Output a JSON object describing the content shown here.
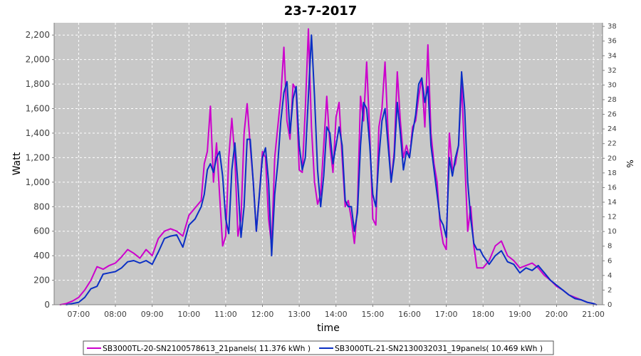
{
  "chart_data": {
    "type": "line",
    "title": "23-7-2017",
    "xlabel": "time",
    "ylabel": "Watt",
    "y2label": "%",
    "xlim": [
      "06:20",
      "21:15"
    ],
    "ylim": [
      0,
      2300
    ],
    "y2lim": [
      0,
      38.5
    ],
    "x_ticks": [
      "07:00",
      "08:00",
      "09:00",
      "10:00",
      "11:00",
      "12:00",
      "13:00",
      "14:00",
      "15:00",
      "16:00",
      "17:00",
      "18:00",
      "19:00",
      "20:00",
      "21:00"
    ],
    "y_ticks": [
      "0",
      "200",
      "400",
      "600",
      "800",
      "1,000",
      "1,200",
      "1,400",
      "1,600",
      "1,800",
      "2,000",
      "2,200"
    ],
    "y2_ticks": [
      "0",
      "2",
      "4",
      "6",
      "8",
      "10",
      "12",
      "14",
      "16",
      "18",
      "20",
      "22",
      "24",
      "26",
      "28",
      "30",
      "32",
      "34",
      "36",
      "38"
    ],
    "grid": true,
    "legend_position": "bottom",
    "colors": {
      "plot_bg": "#c8c8c8",
      "grid": "#ffffff"
    },
    "series": [
      {
        "name": "SB3000TL-20-SN2100578613_21panels( 11.376 kWh )",
        "color": "#cc00cc",
        "points": [
          [
            "06:30",
            0
          ],
          [
            "06:40",
            10
          ],
          [
            "06:50",
            30
          ],
          [
            "07:00",
            60
          ],
          [
            "07:10",
            120
          ],
          [
            "07:20",
            200
          ],
          [
            "07:30",
            310
          ],
          [
            "07:40",
            290
          ],
          [
            "07:50",
            320
          ],
          [
            "08:00",
            340
          ],
          [
            "08:10",
            390
          ],
          [
            "08:20",
            450
          ],
          [
            "08:30",
            420
          ],
          [
            "08:40",
            380
          ],
          [
            "08:50",
            450
          ],
          [
            "09:00",
            400
          ],
          [
            "09:10",
            540
          ],
          [
            "09:20",
            600
          ],
          [
            "09:30",
            620
          ],
          [
            "09:40",
            600
          ],
          [
            "09:50",
            560
          ],
          [
            "10:00",
            730
          ],
          [
            "10:10",
            790
          ],
          [
            "10:20",
            850
          ],
          [
            "10:25",
            1150
          ],
          [
            "10:30",
            1250
          ],
          [
            "10:35",
            1620
          ],
          [
            "10:40",
            1000
          ],
          [
            "10:45",
            1320
          ],
          [
            "10:50",
            900
          ],
          [
            "10:55",
            480
          ],
          [
            "11:00",
            560
          ],
          [
            "11:05",
            1200
          ],
          [
            "11:10",
            1520
          ],
          [
            "11:15",
            1200
          ],
          [
            "11:20",
            560
          ],
          [
            "11:25",
            700
          ],
          [
            "11:30",
            1400
          ],
          [
            "11:35",
            1640
          ],
          [
            "11:40",
            1300
          ],
          [
            "11:45",
            1000
          ],
          [
            "11:50",
            600
          ],
          [
            "11:55",
            900
          ],
          [
            "12:00",
            1250
          ],
          [
            "12:05",
            1200
          ],
          [
            "12:10",
            700
          ],
          [
            "12:15",
            480
          ],
          [
            "12:20",
            1200
          ],
          [
            "12:25",
            1450
          ],
          [
            "12:30",
            1700
          ],
          [
            "12:35",
            2100
          ],
          [
            "12:40",
            1500
          ],
          [
            "12:45",
            1350
          ],
          [
            "12:50",
            1800
          ],
          [
            "12:55",
            1750
          ],
          [
            "13:00",
            1100
          ],
          [
            "13:05",
            1080
          ],
          [
            "13:10",
            1600
          ],
          [
            "13:15",
            2250
          ],
          [
            "13:20",
            1450
          ],
          [
            "13:25",
            1000
          ],
          [
            "13:30",
            820
          ],
          [
            "13:35",
            900
          ],
          [
            "13:40",
            1300
          ],
          [
            "13:45",
            1700
          ],
          [
            "13:50",
            1300
          ],
          [
            "13:55",
            1080
          ],
          [
            "14:00",
            1530
          ],
          [
            "14:05",
            1650
          ],
          [
            "14:10",
            1200
          ],
          [
            "14:15",
            800
          ],
          [
            "14:20",
            850
          ],
          [
            "14:25",
            700
          ],
          [
            "14:30",
            500
          ],
          [
            "14:35",
            800
          ],
          [
            "14:40",
            1700
          ],
          [
            "14:45",
            1500
          ],
          [
            "14:50",
            1980
          ],
          [
            "14:55",
            1400
          ],
          [
            "15:00",
            700
          ],
          [
            "15:05",
            650
          ],
          [
            "15:10",
            1450
          ],
          [
            "15:15",
            1600
          ],
          [
            "15:20",
            1980
          ],
          [
            "15:25",
            1400
          ],
          [
            "15:30",
            1000
          ],
          [
            "15:35",
            1250
          ],
          [
            "15:40",
            1900
          ],
          [
            "15:45",
            1500
          ],
          [
            "15:50",
            1200
          ],
          [
            "15:55",
            1300
          ],
          [
            "16:00",
            1200
          ],
          [
            "16:05",
            1450
          ],
          [
            "16:10",
            1500
          ],
          [
            "16:15",
            1700
          ],
          [
            "16:20",
            1850
          ],
          [
            "16:25",
            1450
          ],
          [
            "16:30",
            2120
          ],
          [
            "16:35",
            1400
          ],
          [
            "16:40",
            1150
          ],
          [
            "16:45",
            1000
          ],
          [
            "16:50",
            650
          ],
          [
            "16:55",
            500
          ],
          [
            "17:00",
            450
          ],
          [
            "17:05",
            1400
          ],
          [
            "17:10",
            1100
          ],
          [
            "17:15",
            1150
          ],
          [
            "17:20",
            1300
          ],
          [
            "17:25",
            1800
          ],
          [
            "17:30",
            1200
          ],
          [
            "17:35",
            600
          ],
          [
            "17:40",
            800
          ],
          [
            "17:45",
            480
          ],
          [
            "17:50",
            300
          ],
          [
            "17:55",
            300
          ],
          [
            "18:00",
            300
          ],
          [
            "18:10",
            360
          ],
          [
            "18:20",
            480
          ],
          [
            "18:30",
            520
          ],
          [
            "18:40",
            400
          ],
          [
            "18:50",
            360
          ],
          [
            "19:00",
            300
          ],
          [
            "19:10",
            320
          ],
          [
            "19:20",
            340
          ],
          [
            "19:30",
            300
          ],
          [
            "19:40",
            240
          ],
          [
            "19:50",
            200
          ],
          [
            "20:00",
            150
          ],
          [
            "20:10",
            120
          ],
          [
            "20:20",
            80
          ],
          [
            "20:30",
            60
          ],
          [
            "20:40",
            40
          ],
          [
            "20:50",
            20
          ],
          [
            "21:00",
            10
          ],
          [
            "21:05",
            0
          ]
        ]
      },
      {
        "name": "SB3000TL-21-SN2130032031_19panels( 10.469 kWh )",
        "color": "#0a2fc4",
        "points": [
          [
            "06:40",
            0
          ],
          [
            "06:50",
            10
          ],
          [
            "07:00",
            20
          ],
          [
            "07:10",
            60
          ],
          [
            "07:20",
            130
          ],
          [
            "07:30",
            150
          ],
          [
            "07:40",
            250
          ],
          [
            "07:50",
            260
          ],
          [
            "08:00",
            270
          ],
          [
            "08:10",
            300
          ],
          [
            "08:20",
            350
          ],
          [
            "08:30",
            360
          ],
          [
            "08:40",
            340
          ],
          [
            "08:50",
            360
          ],
          [
            "09:00",
            330
          ],
          [
            "09:10",
            430
          ],
          [
            "09:20",
            540
          ],
          [
            "09:30",
            560
          ],
          [
            "09:40",
            570
          ],
          [
            "09:50",
            470
          ],
          [
            "10:00",
            650
          ],
          [
            "10:10",
            700
          ],
          [
            "10:20",
            800
          ],
          [
            "10:25",
            900
          ],
          [
            "10:30",
            1100
          ],
          [
            "10:35",
            1150
          ],
          [
            "10:40",
            1080
          ],
          [
            "10:45",
            1200
          ],
          [
            "10:50",
            1250
          ],
          [
            "10:55",
            1050
          ],
          [
            "11:00",
            700
          ],
          [
            "11:05",
            580
          ],
          [
            "11:10",
            1100
          ],
          [
            "11:15",
            1320
          ],
          [
            "11:20",
            980
          ],
          [
            "11:25",
            550
          ],
          [
            "11:30",
            800
          ],
          [
            "11:35",
            1350
          ],
          [
            "11:40",
            1350
          ],
          [
            "11:45",
            1000
          ],
          [
            "11:50",
            600
          ],
          [
            "11:55",
            900
          ],
          [
            "12:00",
            1200
          ],
          [
            "12:05",
            1280
          ],
          [
            "12:10",
            1000
          ],
          [
            "12:15",
            400
          ],
          [
            "12:20",
            900
          ],
          [
            "12:25",
            1150
          ],
          [
            "12:30",
            1500
          ],
          [
            "12:35",
            1730
          ],
          [
            "12:40",
            1820
          ],
          [
            "12:45",
            1400
          ],
          [
            "12:50",
            1680
          ],
          [
            "12:55",
            1780
          ],
          [
            "13:00",
            1300
          ],
          [
            "13:05",
            1100
          ],
          [
            "13:10",
            1200
          ],
          [
            "13:15",
            1700
          ],
          [
            "13:20",
            2200
          ],
          [
            "13:25",
            1700
          ],
          [
            "13:30",
            1100
          ],
          [
            "13:35",
            800
          ],
          [
            "13:40",
            1050
          ],
          [
            "13:45",
            1450
          ],
          [
            "13:50",
            1400
          ],
          [
            "13:55",
            1150
          ],
          [
            "14:00",
            1300
          ],
          [
            "14:05",
            1450
          ],
          [
            "14:10",
            1300
          ],
          [
            "14:15",
            850
          ],
          [
            "14:20",
            800
          ],
          [
            "14:25",
            800
          ],
          [
            "14:30",
            600
          ],
          [
            "14:35",
            750
          ],
          [
            "14:40",
            1300
          ],
          [
            "14:45",
            1650
          ],
          [
            "14:50",
            1600
          ],
          [
            "14:55",
            1300
          ],
          [
            "15:00",
            900
          ],
          [
            "15:05",
            800
          ],
          [
            "15:10",
            1200
          ],
          [
            "15:15",
            1500
          ],
          [
            "15:20",
            1600
          ],
          [
            "15:25",
            1300
          ],
          [
            "15:30",
            1000
          ],
          [
            "15:35",
            1200
          ],
          [
            "15:40",
            1650
          ],
          [
            "15:45",
            1400
          ],
          [
            "15:50",
            1100
          ],
          [
            "15:55",
            1250
          ],
          [
            "16:00",
            1200
          ],
          [
            "16:05",
            1400
          ],
          [
            "16:10",
            1550
          ],
          [
            "16:15",
            1800
          ],
          [
            "16:20",
            1850
          ],
          [
            "16:25",
            1650
          ],
          [
            "16:30",
            1780
          ],
          [
            "16:35",
            1300
          ],
          [
            "16:40",
            1100
          ],
          [
            "16:45",
            900
          ],
          [
            "16:50",
            700
          ],
          [
            "16:55",
            650
          ],
          [
            "17:00",
            550
          ],
          [
            "17:05",
            1200
          ],
          [
            "17:10",
            1050
          ],
          [
            "17:15",
            1200
          ],
          [
            "17:20",
            1300
          ],
          [
            "17:25",
            1900
          ],
          [
            "17:30",
            1600
          ],
          [
            "17:35",
            1000
          ],
          [
            "17:40",
            700
          ],
          [
            "17:45",
            500
          ],
          [
            "17:50",
            450
          ],
          [
            "17:55",
            450
          ],
          [
            "18:00",
            400
          ],
          [
            "18:10",
            330
          ],
          [
            "18:20",
            400
          ],
          [
            "18:30",
            440
          ],
          [
            "18:40",
            350
          ],
          [
            "18:50",
            330
          ],
          [
            "19:00",
            260
          ],
          [
            "19:10",
            300
          ],
          [
            "19:20",
            280
          ],
          [
            "19:30",
            320
          ],
          [
            "19:40",
            260
          ],
          [
            "19:50",
            200
          ],
          [
            "20:00",
            160
          ],
          [
            "20:10",
            120
          ],
          [
            "20:20",
            80
          ],
          [
            "20:30",
            50
          ],
          [
            "20:40",
            40
          ],
          [
            "20:50",
            20
          ],
          [
            "21:00",
            10
          ],
          [
            "21:05",
            0
          ]
        ]
      }
    ]
  }
}
